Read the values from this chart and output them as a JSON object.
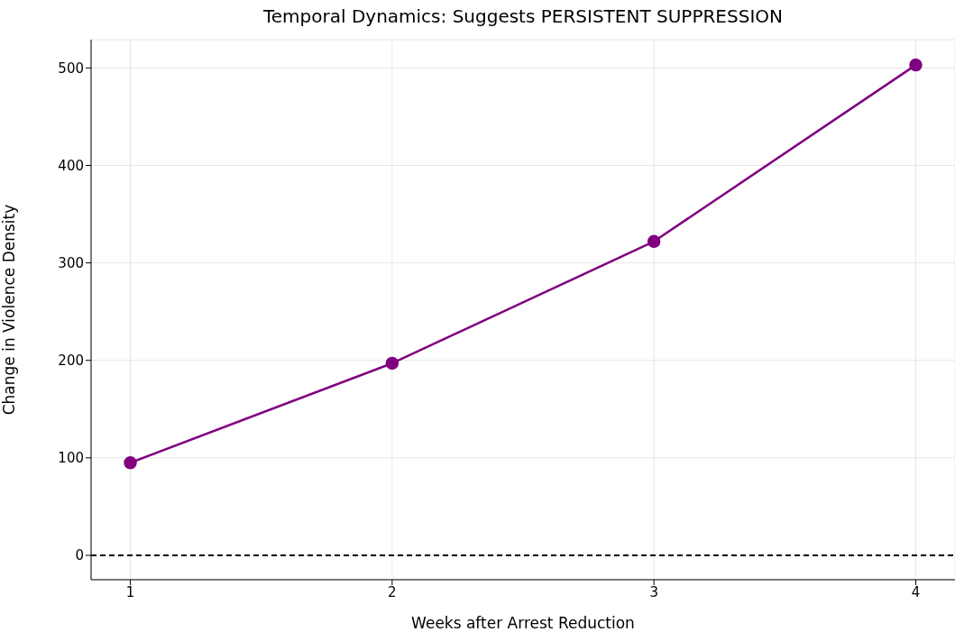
{
  "chart_data": {
    "type": "line",
    "title": "Temporal Dynamics: Suggests PERSISTENT SUPPRESSION",
    "xlabel": "Weeks after Arrest Reduction",
    "ylabel": "Change in Violence Density",
    "x": [
      1,
      2,
      3,
      4
    ],
    "series": [
      {
        "color": "#800080",
        "values": [
          95,
          197,
          322,
          503
        ]
      }
    ],
    "xlim": [
      0.85,
      4.15
    ],
    "xticks": [
      1,
      2,
      3,
      4
    ],
    "ylim": [
      -25,
      529
    ],
    "yticks": [
      0,
      100,
      200,
      300,
      400,
      500
    ],
    "grid": true,
    "marker": "circle",
    "line_style": "solid",
    "ref_lines": [
      {
        "axis": "y",
        "value": 0,
        "label": null,
        "color": "#000000",
        "line_style": "dashed"
      }
    ]
  }
}
